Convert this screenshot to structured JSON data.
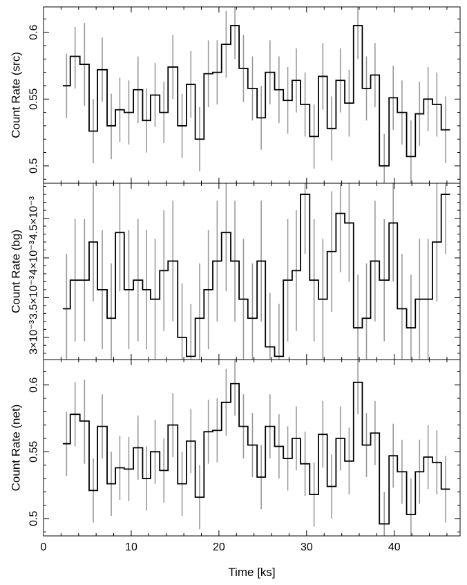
{
  "chart_data": [
    {
      "type": "line",
      "ylabel": "Count Rate (src)",
      "ylim": [
        0.487,
        0.619
      ],
      "yticks": [
        0.5,
        0.55,
        0.6
      ],
      "ytick_labels": [
        "0.5",
        "0.55",
        "0.6"
      ],
      "series": [
        {
          "bin_left": [
            2.2,
            3.05,
            4.15,
            5.2,
            6.15,
            7.25,
            8.2,
            9.2,
            10.25,
            11.3,
            12.2,
            13.25,
            14.2,
            15.3,
            16.3,
            17.3,
            18.3,
            19.3,
            20.3,
            21.35,
            22.3,
            23.3,
            24.35,
            25.3,
            26.35,
            27.35,
            28.35,
            29.3,
            30.35,
            31.35,
            32.35,
            33.35,
            34.35,
            35.35,
            36.35,
            37.3,
            38.3,
            39.4,
            40.35,
            41.4,
            42.4,
            43.35,
            44.35,
            45.35
          ],
          "y": [
            0.56,
            0.582,
            0.576,
            0.526,
            0.572,
            0.53,
            0.542,
            0.54,
            0.557,
            0.534,
            0.553,
            0.54,
            0.574,
            0.53,
            0.561,
            0.52,
            0.569,
            0.57,
            0.591,
            0.605,
            0.573,
            0.558,
            0.536,
            0.57,
            0.557,
            0.549,
            0.564,
            0.546,
            0.522,
            0.567,
            0.528,
            0.564,
            0.547,
            0.605,
            0.558,
            0.568,
            0.5,
            0.551,
            0.54,
            0.507,
            0.539,
            0.55,
            0.546,
            0.527
          ],
          "err_lo": [
            0.536,
            0.558,
            0.545,
            0.502,
            0.548,
            0.505,
            0.518,
            0.516,
            0.532,
            0.51,
            0.529,
            0.517,
            0.55,
            0.506,
            0.536,
            0.496,
            0.544,
            0.546,
            0.566,
            0.58,
            0.548,
            0.534,
            0.512,
            0.546,
            0.532,
            0.524,
            0.54,
            0.522,
            0.498,
            0.542,
            0.504,
            0.54,
            0.522,
            0.58,
            0.534,
            0.544,
            0.478,
            0.527,
            0.516,
            0.48,
            0.515,
            0.526,
            0.522,
            0.502
          ],
          "err_hi": [
            0.584,
            0.604,
            0.607,
            0.55,
            0.596,
            0.554,
            0.566,
            0.564,
            0.582,
            0.558,
            0.577,
            0.563,
            0.598,
            0.554,
            0.586,
            0.544,
            0.594,
            0.594,
            0.616,
            0.63,
            0.598,
            0.582,
            0.56,
            0.594,
            0.582,
            0.574,
            0.588,
            0.57,
            0.546,
            0.592,
            0.552,
            0.588,
            0.572,
            0.63,
            0.582,
            0.592,
            0.524,
            0.575,
            0.564,
            0.534,
            0.563,
            0.574,
            0.57,
            0.552
          ]
        }
      ]
    },
    {
      "type": "line",
      "ylabel": "Count Rate (bg)",
      "ylim": [
        0.00272,
        0.00494
      ],
      "yticks": [
        0.003,
        0.0035,
        0.004,
        0.0045
      ],
      "ytick_labels": [
        "3×10⁻³",
        "3.5×10⁻³",
        "4×10⁻³",
        "4.5×10⁻³"
      ],
      "series": [
        {
          "bin_left": [
            2.2,
            3.05,
            4.15,
            5.2,
            6.15,
            7.25,
            8.2,
            9.2,
            10.25,
            11.3,
            12.2,
            13.25,
            14.2,
            15.3,
            16.3,
            17.3,
            18.3,
            19.3,
            20.3,
            21.35,
            22.3,
            23.3,
            24.35,
            25.3,
            26.35,
            27.35,
            28.35,
            29.3,
            30.35,
            31.35,
            32.35,
            33.35,
            34.35,
            35.35,
            36.35,
            37.3,
            38.3,
            39.4,
            40.35,
            41.4,
            42.4,
            43.35,
            44.35,
            45.35
          ],
          "y": [
            0.00336,
            0.00372,
            0.00372,
            0.0042,
            0.0036,
            0.00324,
            0.00432,
            0.0036,
            0.00372,
            0.0036,
            0.00348,
            0.00384,
            0.00396,
            0.003,
            0.00276,
            0.00324,
            0.0036,
            0.00396,
            0.00432,
            0.00396,
            0.00348,
            0.00324,
            0.00396,
            0.00288,
            0.00276,
            0.00372,
            0.00384,
            0.0048,
            0.00372,
            0.00348,
            0.00408,
            0.00456,
            0.00444,
            0.00312,
            0.00324,
            0.00396,
            0.00372,
            0.00444,
            0.00336,
            0.00312,
            0.00348,
            0.00348,
            0.0042,
            0.0048
          ],
          "err_lo": [
            0.00265,
            0.00295,
            0.00295,
            0.00345,
            0.00285,
            0.00255,
            0.00358,
            0.00285,
            0.00295,
            0.00285,
            0.00272,
            0.00308,
            0.0032,
            0.00232,
            0.0021,
            0.00255,
            0.00285,
            0.0032,
            0.00358,
            0.0032,
            0.00272,
            0.00255,
            0.0032,
            0.0022,
            0.0021,
            0.00295,
            0.00308,
            0.00405,
            0.00295,
            0.00272,
            0.00332,
            0.00382,
            0.0037,
            0.00245,
            0.00255,
            0.0032,
            0.00295,
            0.0037,
            0.00265,
            0.00245,
            0.00272,
            0.00272,
            0.00345,
            0.00405
          ],
          "err_hi": [
            0.00405,
            0.00449,
            0.00449,
            0.00495,
            0.00435,
            0.00393,
            0.00506,
            0.00435,
            0.00449,
            0.00435,
            0.00424,
            0.0046,
            0.00472,
            0.00368,
            0.00342,
            0.00393,
            0.00435,
            0.00472,
            0.00506,
            0.00472,
            0.00424,
            0.00393,
            0.00472,
            0.00356,
            0.00342,
            0.00449,
            0.0046,
            0.00555,
            0.00449,
            0.00424,
            0.00484,
            0.0053,
            0.00518,
            0.00379,
            0.00393,
            0.00472,
            0.00449,
            0.00518,
            0.00405,
            0.00379,
            0.00424,
            0.00424,
            0.00495,
            0.00555
          ]
        }
      ]
    },
    {
      "type": "line",
      "ylabel": "Count Rate (net)",
      "xlabel": "Time [ks]",
      "xlim": [
        0,
        47.5
      ],
      "xticks": [
        0,
        10,
        20,
        30,
        40
      ],
      "xtick_labels": [
        "0",
        "10",
        "20",
        "30",
        "40"
      ],
      "ylim": [
        0.487,
        0.619
      ],
      "yticks": [
        0.5,
        0.55,
        0.6
      ],
      "ytick_labels": [
        "0.5",
        "0.55",
        "0.6"
      ],
      "series": [
        {
          "bin_left": [
            2.2,
            3.05,
            4.15,
            5.2,
            6.15,
            7.25,
            8.2,
            9.2,
            10.25,
            11.3,
            12.2,
            13.25,
            14.2,
            15.3,
            16.3,
            17.3,
            18.3,
            19.3,
            20.3,
            21.35,
            22.3,
            23.3,
            24.35,
            25.3,
            26.35,
            27.35,
            28.35,
            29.3,
            30.35,
            31.35,
            32.35,
            33.35,
            34.35,
            35.35,
            36.35,
            37.3,
            38.3,
            39.4,
            40.35,
            41.4,
            42.4,
            43.35,
            44.35,
            45.35
          ],
          "y": [
            0.556,
            0.578,
            0.573,
            0.521,
            0.569,
            0.526,
            0.538,
            0.537,
            0.553,
            0.53,
            0.55,
            0.536,
            0.57,
            0.526,
            0.558,
            0.516,
            0.565,
            0.566,
            0.587,
            0.601,
            0.569,
            0.555,
            0.531,
            0.569,
            0.554,
            0.545,
            0.56,
            0.541,
            0.518,
            0.563,
            0.524,
            0.56,
            0.543,
            0.602,
            0.555,
            0.564,
            0.496,
            0.547,
            0.535,
            0.503,
            0.535,
            0.546,
            0.542,
            0.522
          ],
          "err_lo": [
            0.532,
            0.554,
            0.541,
            0.497,
            0.545,
            0.502,
            0.514,
            0.513,
            0.529,
            0.506,
            0.526,
            0.512,
            0.546,
            0.502,
            0.534,
            0.492,
            0.541,
            0.542,
            0.562,
            0.577,
            0.545,
            0.531,
            0.507,
            0.545,
            0.53,
            0.521,
            0.536,
            0.517,
            0.494,
            0.538,
            0.5,
            0.536,
            0.518,
            0.578,
            0.531,
            0.54,
            0.474,
            0.523,
            0.511,
            0.477,
            0.511,
            0.522,
            0.518,
            0.497
          ],
          "err_hi": [
            0.58,
            0.602,
            0.604,
            0.545,
            0.593,
            0.55,
            0.562,
            0.561,
            0.577,
            0.554,
            0.574,
            0.56,
            0.594,
            0.55,
            0.582,
            0.54,
            0.589,
            0.59,
            0.612,
            0.626,
            0.593,
            0.579,
            0.555,
            0.593,
            0.578,
            0.569,
            0.584,
            0.565,
            0.542,
            0.588,
            0.548,
            0.584,
            0.568,
            0.626,
            0.579,
            0.588,
            0.52,
            0.571,
            0.559,
            0.53,
            0.559,
            0.57,
            0.566,
            0.547
          ]
        }
      ]
    }
  ]
}
